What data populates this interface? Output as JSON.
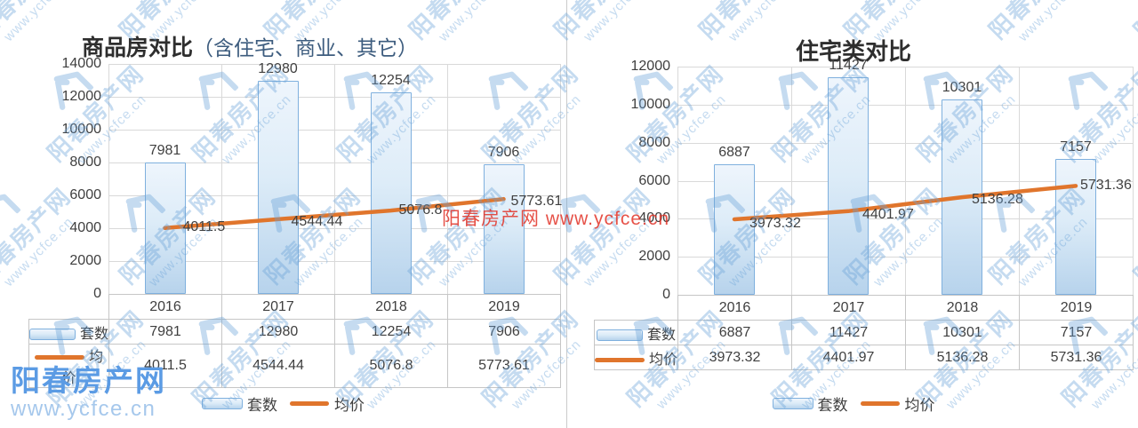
{
  "watermark": {
    "site_name": "阳春房产网",
    "site_url": "www.ycfce.cn"
  },
  "red_watermark": {
    "text": "阳春房产网  www.ycfce.cn"
  },
  "logo": {
    "name": "阳春房产网",
    "url": "www.ycfce.cn"
  },
  "legend": {
    "bars": "套数",
    "line": "均价"
  },
  "colors": {
    "line": "#e0752c",
    "bar_border": "#7fb0de",
    "bar_top": "#eef5fc",
    "bar_mid": "#ddecf8",
    "bar_bot": "#b7d3ec",
    "grid": "#d9d9d9",
    "text": "#3f3f3f",
    "table_border": "#c6c6c6",
    "watermark": "#69a2d8",
    "red": "#e23328",
    "logo": "#5b9be4",
    "logo_url": "#a6c8ec",
    "title_paren": "#3d5c7e"
  },
  "chart_data": [
    {
      "type": "bar",
      "title": "商品房对比（含住宅、商业、其它）",
      "title_main": "商品房对比",
      "title_paren": "（含住宅、商业、其它）",
      "categories": [
        "2016",
        "2017",
        "2018",
        "2019"
      ],
      "series": [
        {
          "name": "套数",
          "type": "bar",
          "values": [
            7981,
            12980,
            12254,
            7906
          ]
        },
        {
          "name": "均价",
          "type": "line",
          "values": [
            4011.5,
            4544.44,
            5076.8,
            5773.61
          ]
        }
      ],
      "ylim": [
        0,
        14000
      ],
      "y_tick_step": 2000,
      "y_tick_labels": [
        "0",
        "2000",
        "4000",
        "6000",
        "8000",
        "10000",
        "12000",
        "14000"
      ],
      "grid": true,
      "legend_position": "bottom"
    },
    {
      "type": "bar",
      "title": "住宅类对比",
      "title_main": "住宅类对比",
      "title_paren": "",
      "categories": [
        "2016",
        "2017",
        "2018",
        "2019"
      ],
      "series": [
        {
          "name": "套数",
          "type": "bar",
          "values": [
            6887,
            11427,
            10301,
            7157
          ]
        },
        {
          "name": "均价",
          "type": "line",
          "values": [
            3973.32,
            4401.97,
            5136.28,
            5731.36
          ]
        }
      ],
      "ylim": [
        0,
        12000
      ],
      "y_tick_step": 2000,
      "y_tick_labels": [
        "0",
        "2000",
        "4000",
        "6000",
        "8000",
        "10000",
        "12000"
      ],
      "grid": true,
      "legend_position": "bottom"
    }
  ]
}
